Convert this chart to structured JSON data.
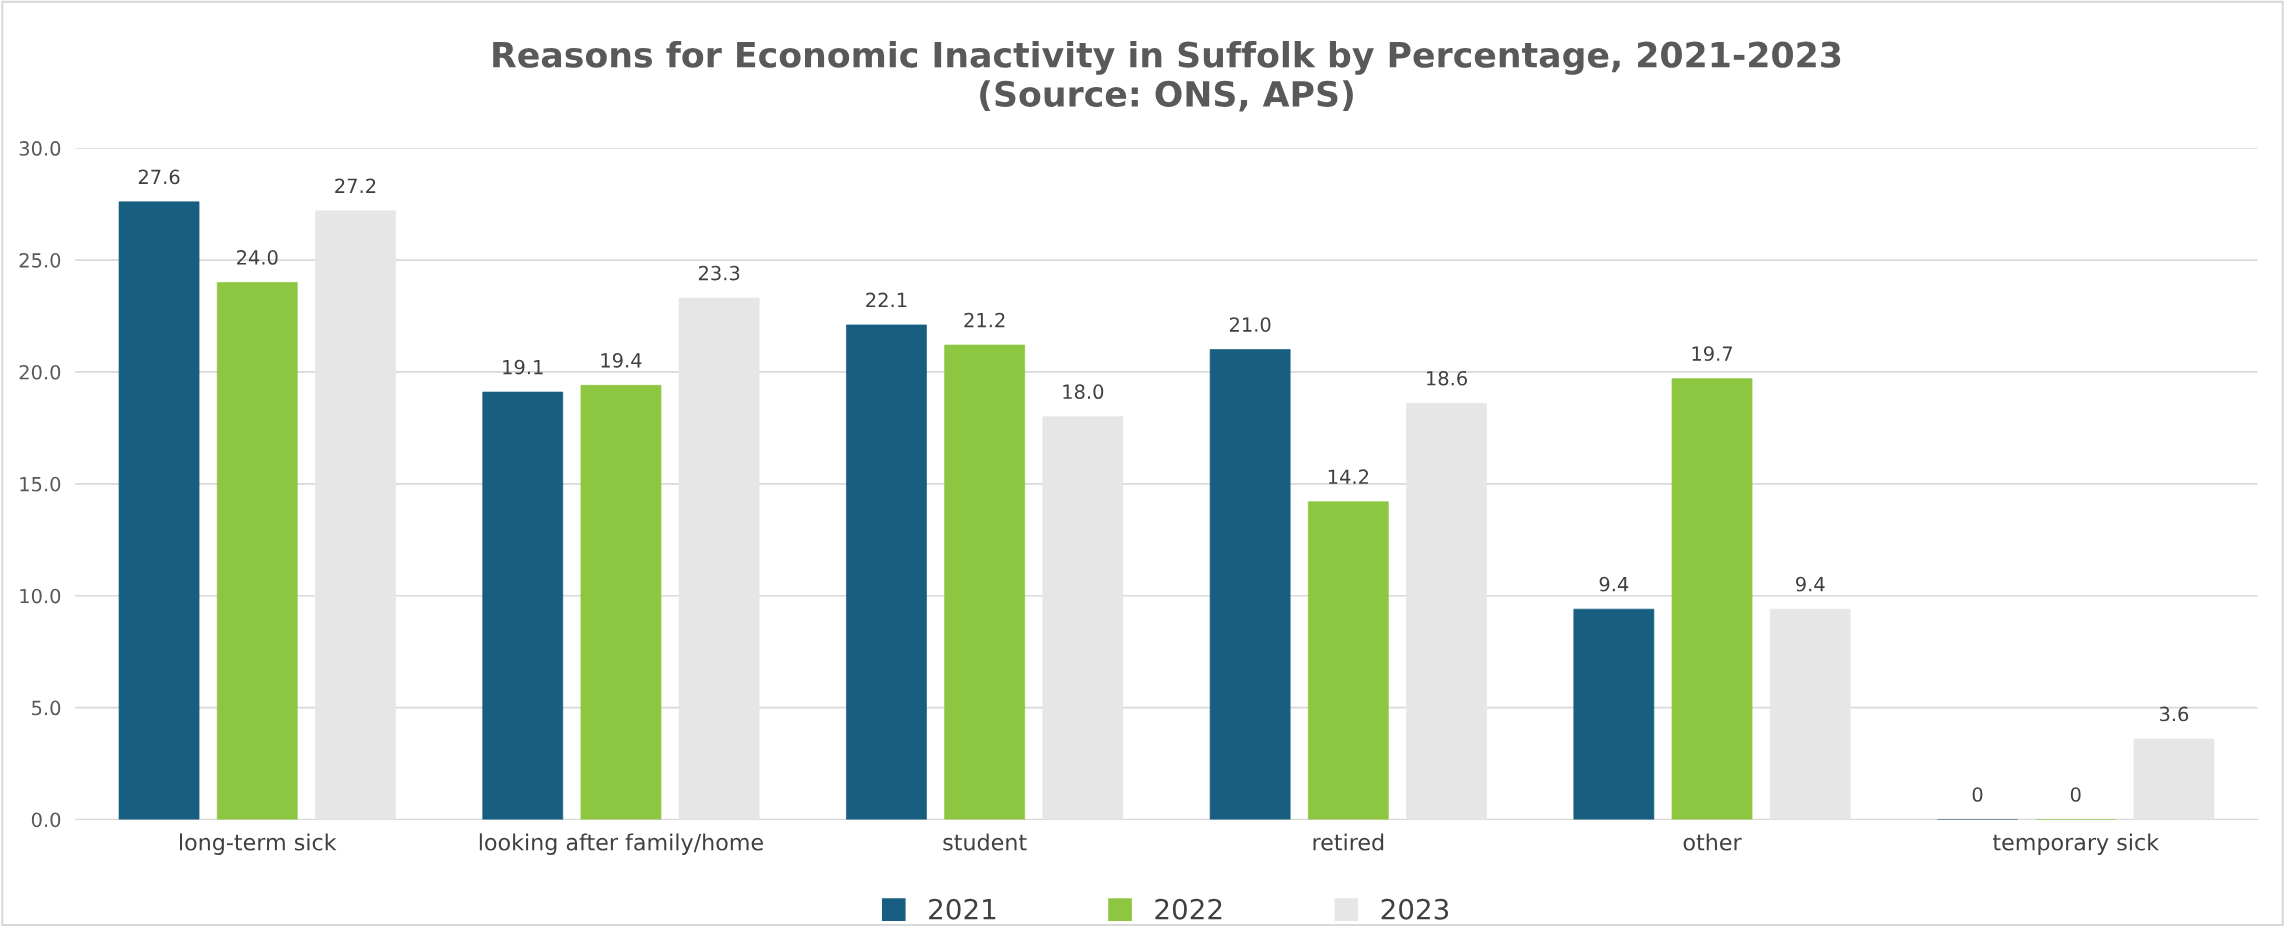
{
  "chart_data": {
    "type": "bar",
    "title": "Reasons for Economic Inactivity in Suffolk by Percentage, 2021-2023\n(Source: ONS, APS)",
    "categories": [
      "long-term sick",
      "looking after family/home",
      "student",
      "retired",
      "other",
      "temporary sick"
    ],
    "series": [
      {
        "name": "2021",
        "color": "#175e80",
        "values": [
          27.6,
          19.1,
          22.1,
          21.0,
          9.4,
          0
        ],
        "value_labels": [
          "27.6",
          "19.1",
          "22.1",
          "21.0",
          "9.4",
          "0"
        ]
      },
      {
        "name": "2022",
        "color": "#8dc641",
        "values": [
          24.0,
          19.4,
          21.2,
          14.2,
          19.7,
          0
        ],
        "value_labels": [
          "24.0",
          "19.4",
          "21.2",
          "14.2",
          "19.7",
          "0"
        ]
      },
      {
        "name": "2023",
        "color": "#e6e6e6",
        "values": [
          27.2,
          23.3,
          18.0,
          18.6,
          9.4,
          3.6
        ],
        "value_labels": [
          "27.2",
          "23.3",
          "18.0",
          "18.6",
          "9.4",
          "3.6"
        ]
      }
    ],
    "ylim": [
      0,
      30
    ],
    "yticks": [
      {
        "value": 0,
        "label": "0.0"
      },
      {
        "value": 5,
        "label": "5.0"
      },
      {
        "value": 10,
        "label": "10.0"
      },
      {
        "value": 15,
        "label": "15.0"
      },
      {
        "value": 20,
        "label": "20.0"
      },
      {
        "value": 25,
        "label": "25.0"
      },
      {
        "value": 30,
        "label": "30.0"
      }
    ],
    "grid": "y",
    "legend": "bottom"
  }
}
